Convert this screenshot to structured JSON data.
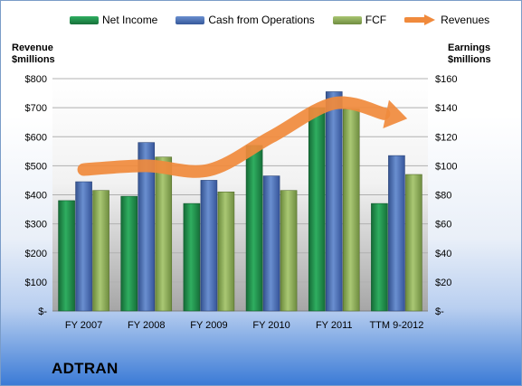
{
  "brand": "ADTRAN",
  "legend": {
    "net_income": "Net Income",
    "cfo": "Cash from Operations",
    "fcf": "FCF",
    "revenues": "Revenues"
  },
  "axes": {
    "left_title_line1": "Revenue",
    "left_title_line2": "$millions",
    "right_title_line1": "Earnings",
    "right_title_line2": "$millions"
  },
  "colors": {
    "net_income": "#1e8c4a",
    "cfo": "#4a6fb5",
    "fcf": "#8fad58",
    "revenues": "#f08a3c"
  },
  "chart_data": {
    "type": "bar",
    "categories": [
      "FY 2007",
      "FY 2008",
      "FY 2009",
      "FY 2010",
      "FY 2011",
      "TTM 9-2012"
    ],
    "series": [
      {
        "name": "Net Income",
        "axis": "right",
        "values": [
          76,
          79,
          74,
          114,
          140,
          74
        ]
      },
      {
        "name": "Cash from Operations",
        "axis": "right",
        "values": [
          89,
          116,
          90,
          93,
          151,
          107
        ]
      },
      {
        "name": "FCF",
        "axis": "right",
        "values": [
          83,
          106,
          82,
          83,
          139,
          94
        ]
      },
      {
        "name": "Revenues",
        "type": "line",
        "axis": "left",
        "values": [
          487,
          500,
          485,
          600,
          715,
          670
        ]
      }
    ],
    "ylabel_left": "Revenue $millions",
    "ylabel_right": "Earnings $millions",
    "ylim_left": [
      0,
      800
    ],
    "ylim_right": [
      0,
      160
    ],
    "left_ticks": [
      "$-",
      "$100",
      "$200",
      "$300",
      "$400",
      "$500",
      "$600",
      "$700",
      "$800"
    ],
    "right_ticks": [
      "$-",
      "$20",
      "$40",
      "$60",
      "$80",
      "$100",
      "$120",
      "$140",
      "$160"
    ],
    "grid": true,
    "legend_position": "top"
  }
}
